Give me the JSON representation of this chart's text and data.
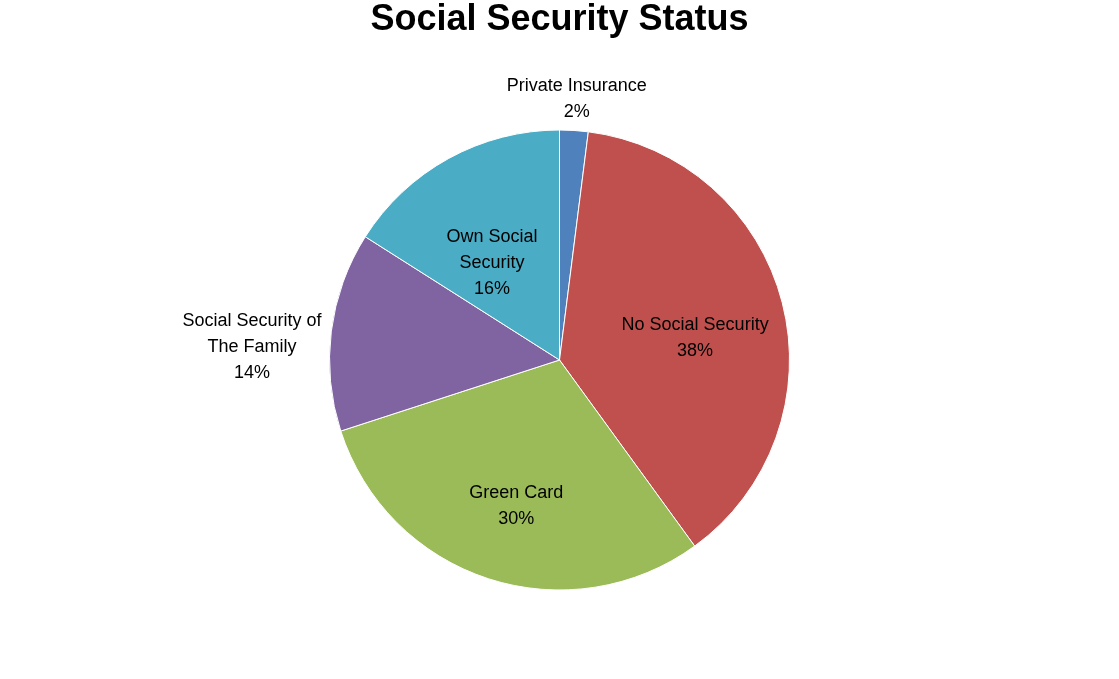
{
  "chart_data": {
    "type": "pie",
    "title": "Social Security Status",
    "categories": [
      "Private Insurance",
      "No Social Security",
      "Green Card",
      "Social Security of The Family",
      "Own Social Security"
    ],
    "values": [
      2,
      38,
      30,
      14,
      16
    ],
    "colors": [
      "#4f81bd",
      "#c0504d",
      "#9bbb59",
      "#8064a2",
      "#4bacc6"
    ],
    "value_labels": [
      "2%",
      "38%",
      "30%",
      "14%",
      "16%"
    ],
    "legend": false
  }
}
